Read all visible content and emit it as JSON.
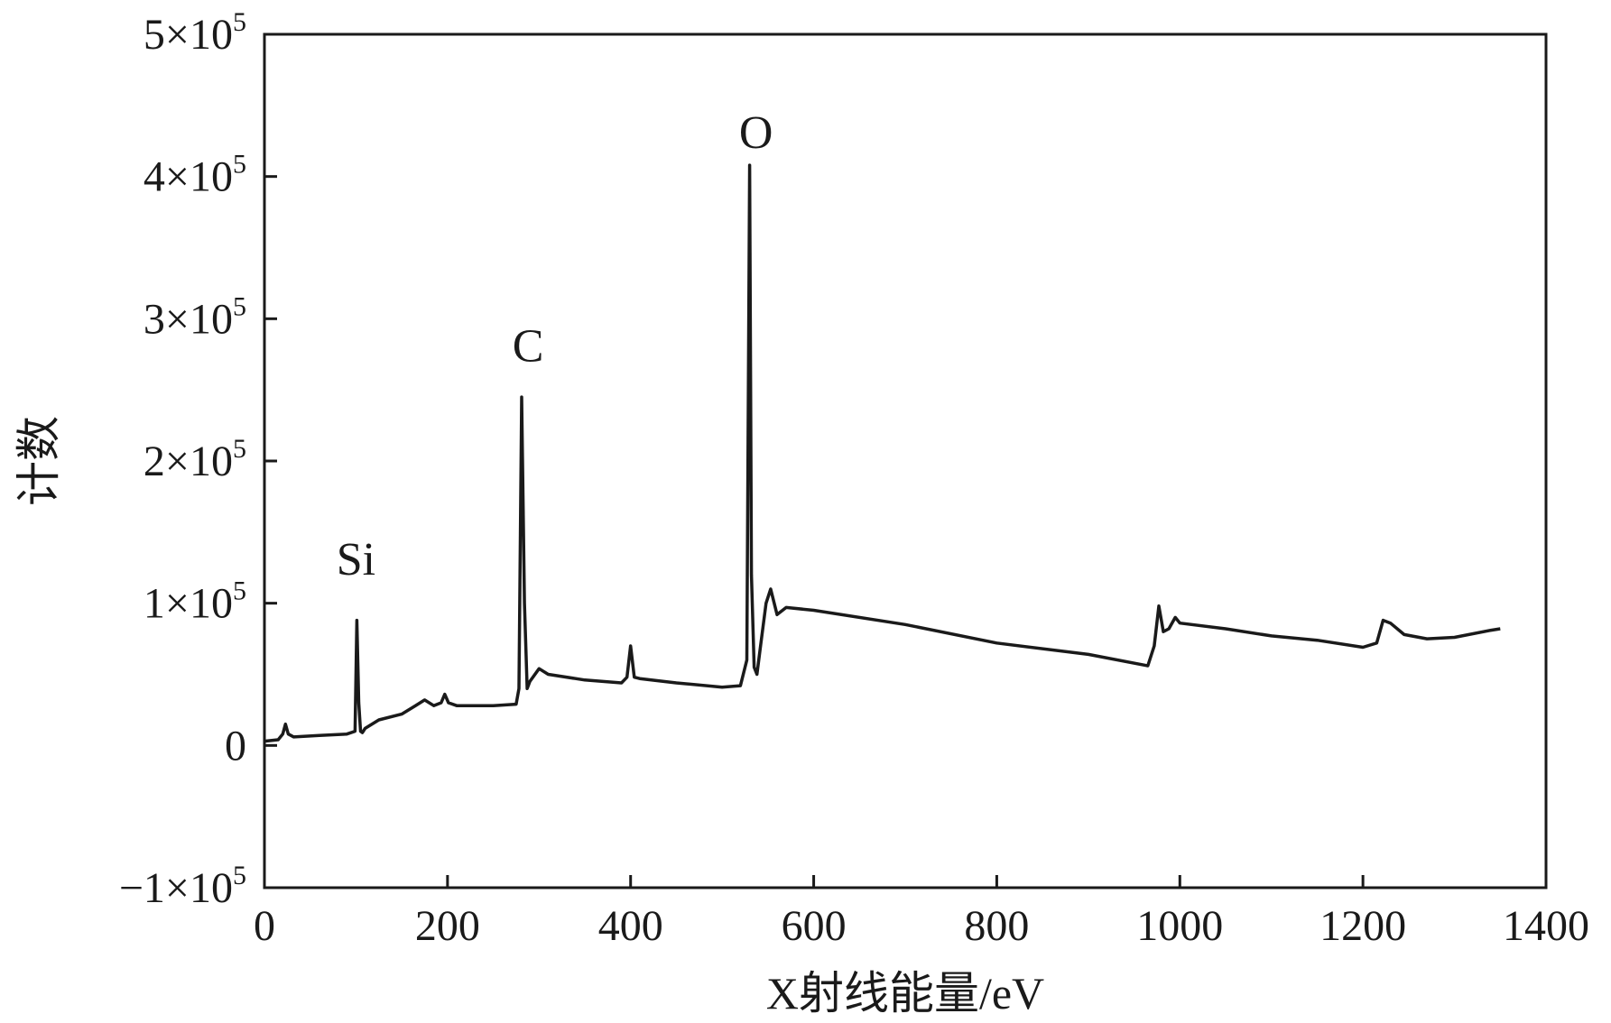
{
  "chart_data": {
    "type": "line",
    "xlabel": "X射线能量/eV",
    "ylabel": "计数",
    "xlim": [
      0,
      1400
    ],
    "ylim": [
      -100000,
      500000
    ],
    "grid": false,
    "x_ticks": [
      {
        "value": 0,
        "label": "0"
      },
      {
        "value": 200,
        "label": "200"
      },
      {
        "value": 400,
        "label": "400"
      },
      {
        "value": 600,
        "label": "600"
      },
      {
        "value": 800,
        "label": "800"
      },
      {
        "value": 1000,
        "label": "1000"
      },
      {
        "value": 1200,
        "label": "1200"
      },
      {
        "value": 1400,
        "label": "1400"
      }
    ],
    "y_ticks": [
      {
        "value": -100000,
        "mantissa": "−1×10",
        "exp": "5"
      },
      {
        "value": 0,
        "mantissa": "0",
        "exp": ""
      },
      {
        "value": 100000,
        "mantissa": "1×10",
        "exp": "5"
      },
      {
        "value": 200000,
        "mantissa": "2×10",
        "exp": "5"
      },
      {
        "value": 300000,
        "mantissa": "3×10",
        "exp": "5"
      },
      {
        "value": 400000,
        "mantissa": "4×10",
        "exp": "5"
      },
      {
        "value": 500000,
        "mantissa": "5×10",
        "exp": "5"
      }
    ],
    "annotations": [
      {
        "text": "Si",
        "x": 100,
        "y": 120000
      },
      {
        "text": "C",
        "x": 288,
        "y": 270000
      },
      {
        "text": "O",
        "x": 537,
        "y": 420000
      }
    ],
    "series": [
      {
        "color": "#1a1a1a",
        "x": [
          0,
          15,
          20,
          23,
          26,
          32,
          60,
          90,
          99,
          101,
          103,
          105,
          107,
          110,
          125,
          150,
          165,
          175,
          185,
          193,
          197,
          201,
          210,
          250,
          275,
          278,
          281,
          284,
          287,
          290,
          300,
          310,
          350,
          390,
          396,
          400,
          404,
          410,
          450,
          500,
          520,
          527,
          530,
          532,
          535,
          538,
          542,
          548,
          553,
          560,
          570,
          600,
          700,
          800,
          900,
          965,
          972,
          977,
          982,
          988,
          995,
          1000,
          1050,
          1100,
          1150,
          1200,
          1215,
          1222,
          1230,
          1245,
          1270,
          1300,
          1340,
          1350
        ],
        "y": [
          3000,
          4000,
          8000,
          15000,
          8000,
          6000,
          7000,
          8000,
          10000,
          88000,
          30000,
          10000,
          9000,
          12000,
          18000,
          22000,
          28000,
          32000,
          28000,
          30000,
          36000,
          30000,
          28000,
          28000,
          29000,
          40000,
          245000,
          100000,
          40000,
          45000,
          54000,
          50000,
          46000,
          44000,
          48000,
          70000,
          48000,
          47000,
          44000,
          41000,
          42000,
          60000,
          408000,
          120000,
          55000,
          50000,
          70000,
          100000,
          110000,
          92000,
          97000,
          95000,
          85000,
          72000,
          64000,
          56000,
          70000,
          98000,
          80000,
          82000,
          90000,
          86000,
          82000,
          77000,
          74000,
          69000,
          72000,
          88000,
          86000,
          78000,
          75000,
          76000,
          81000,
          82000
        ]
      }
    ]
  }
}
